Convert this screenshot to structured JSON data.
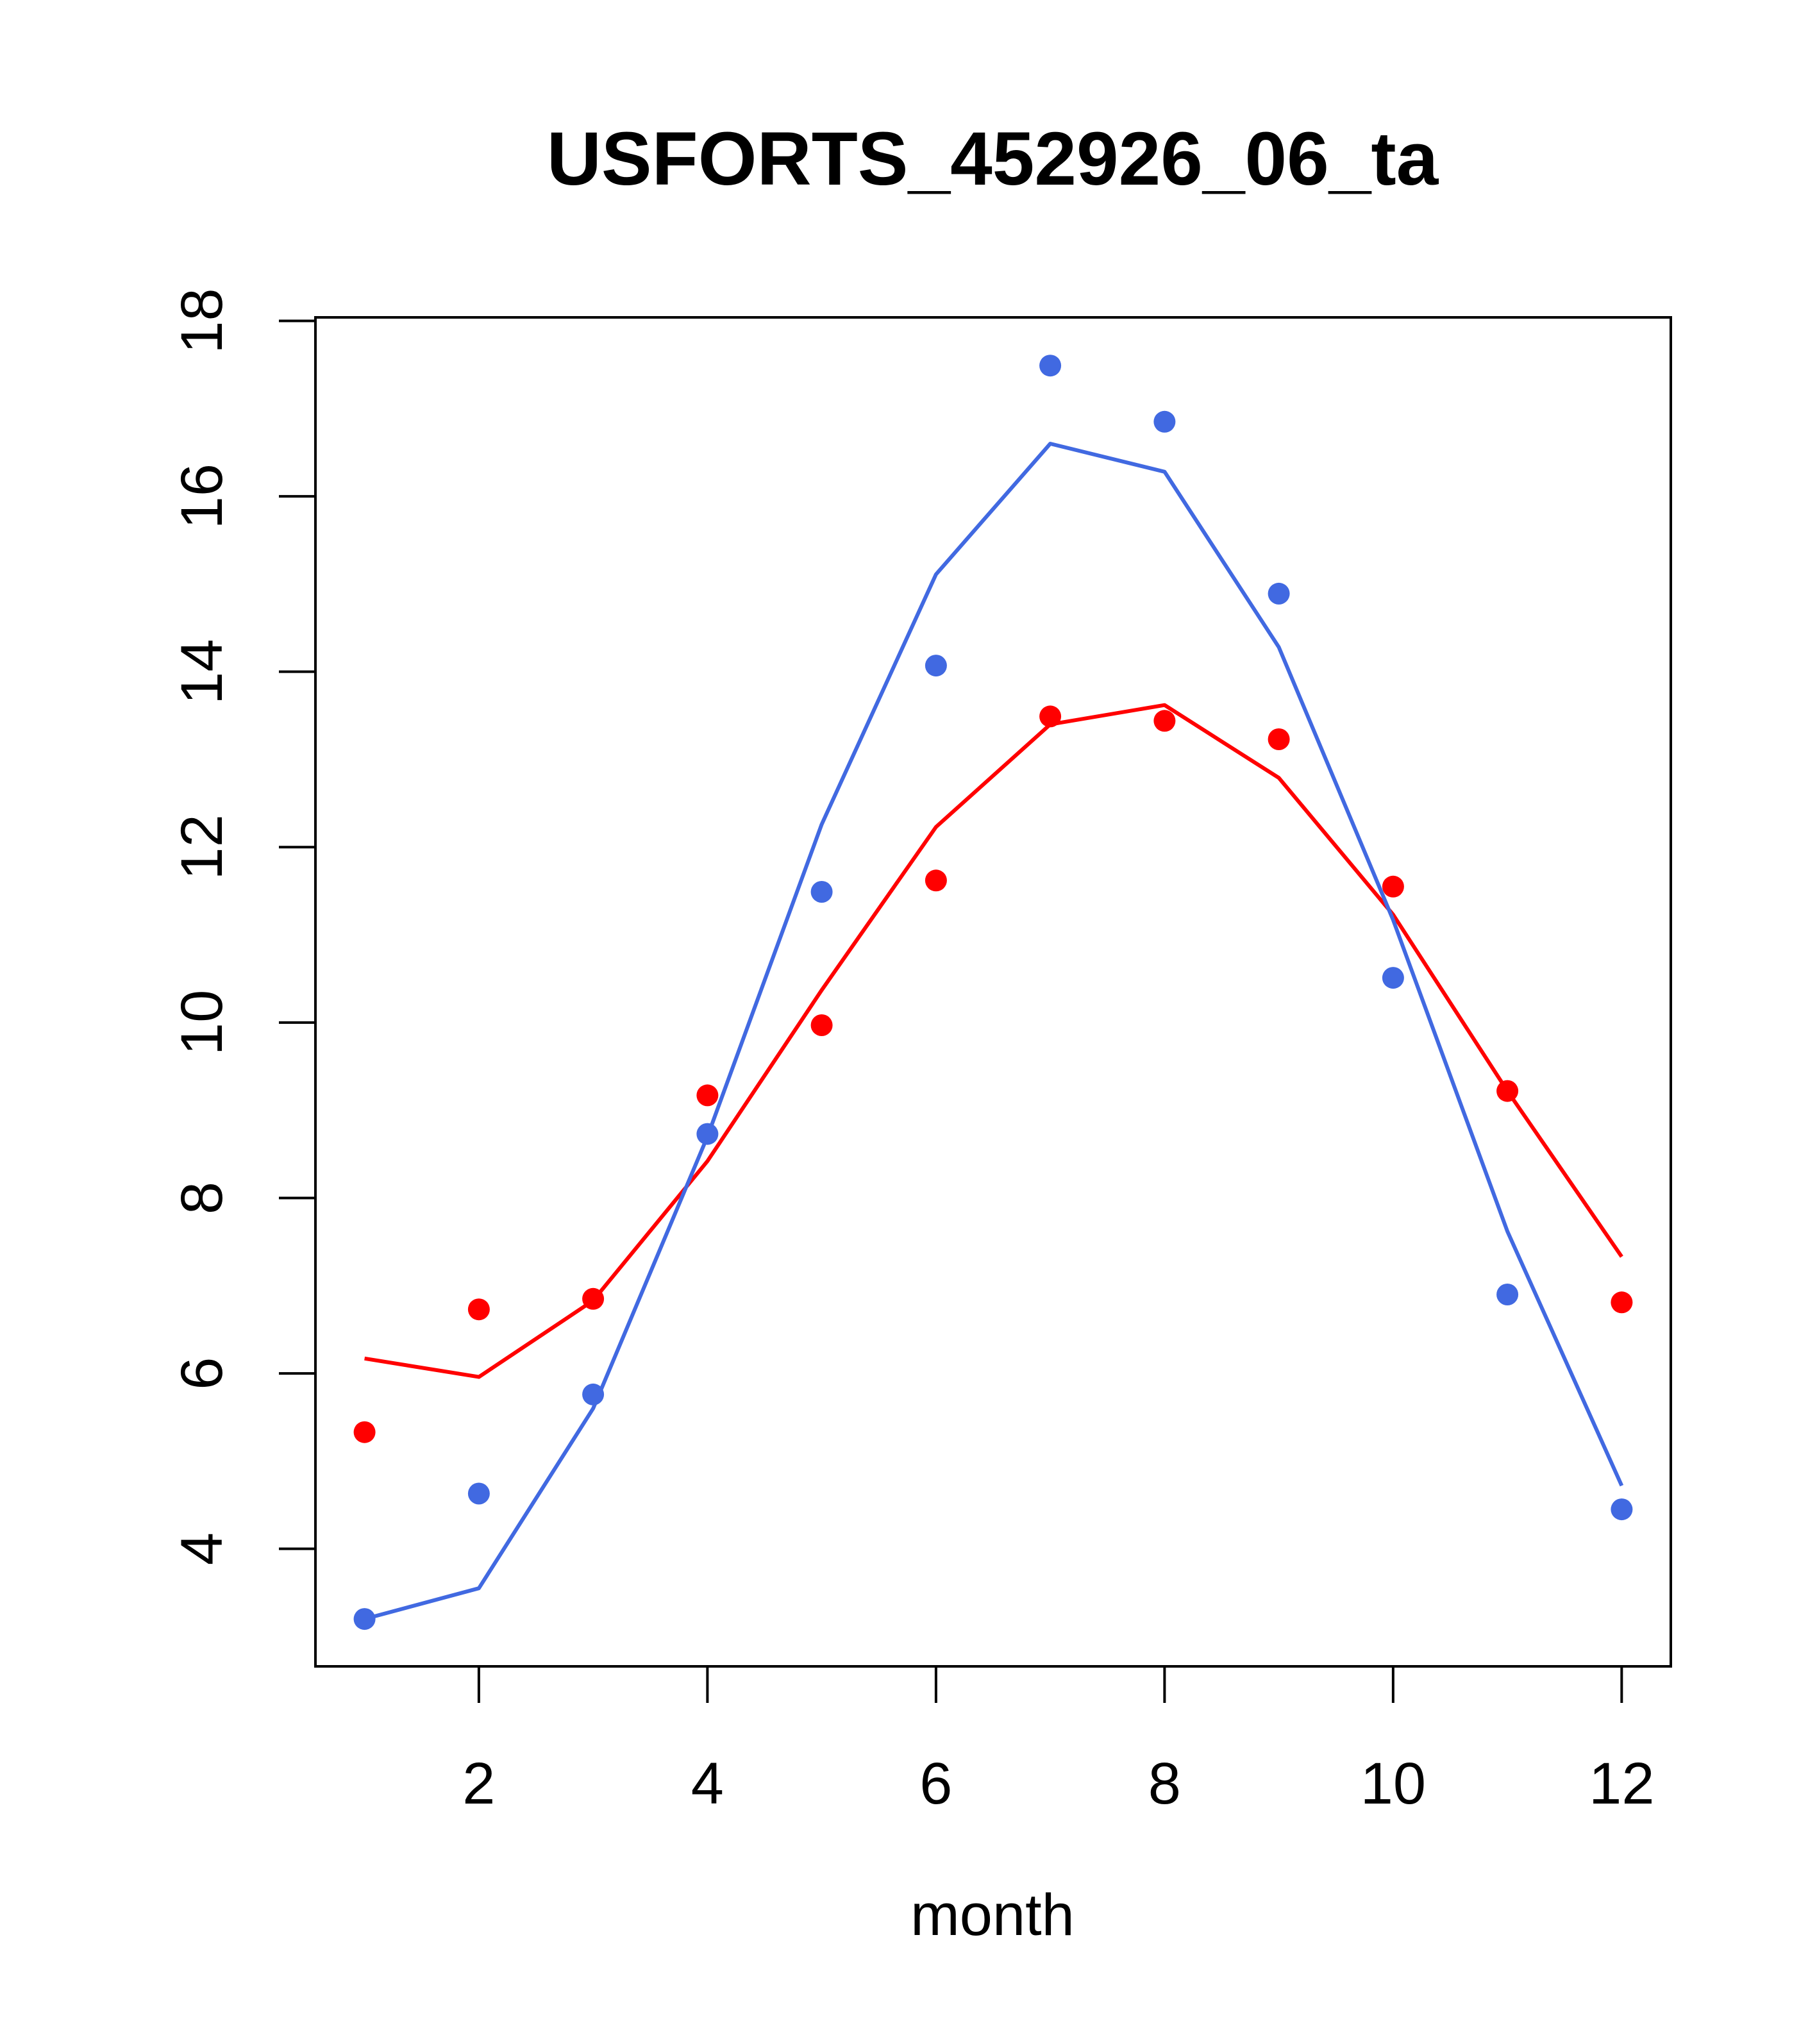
{
  "chart_data": {
    "type": "line",
    "title": "USFORTS_452926_06_ta",
    "xlabel": "month",
    "ylabel": "",
    "xlim": [
      0.57,
      12.43
    ],
    "ylim": [
      2.66,
      18.04
    ],
    "xticks": [
      2,
      4,
      6,
      8,
      10,
      12
    ],
    "yticks": [
      4,
      6,
      8,
      10,
      12,
      14,
      16,
      18
    ],
    "grid": false,
    "legend": "none",
    "x": [
      1,
      2,
      3,
      4,
      5,
      6,
      7,
      8,
      9,
      10,
      11,
      12
    ],
    "series": [
      {
        "color": "#ff0000",
        "points": [
          5.33,
          6.73,
          6.85,
          9.17,
          9.97,
          11.62,
          13.49,
          13.44,
          13.23,
          11.55,
          9.22,
          6.81
        ],
        "line": [
          6.17,
          5.96,
          6.83,
          8.42,
          10.37,
          12.23,
          13.4,
          13.62,
          12.79,
          11.23,
          9.22,
          7.33
        ]
      },
      {
        "color": "#4169e1",
        "points": [
          3.2,
          4.63,
          5.76,
          8.73,
          11.49,
          14.07,
          17.49,
          16.85,
          14.89,
          10.51,
          6.9,
          4.45
        ],
        "line": [
          3.2,
          3.55,
          5.6,
          8.7,
          12.26,
          15.11,
          16.6,
          16.28,
          14.28,
          11.17,
          7.62,
          4.72
        ]
      }
    ]
  }
}
